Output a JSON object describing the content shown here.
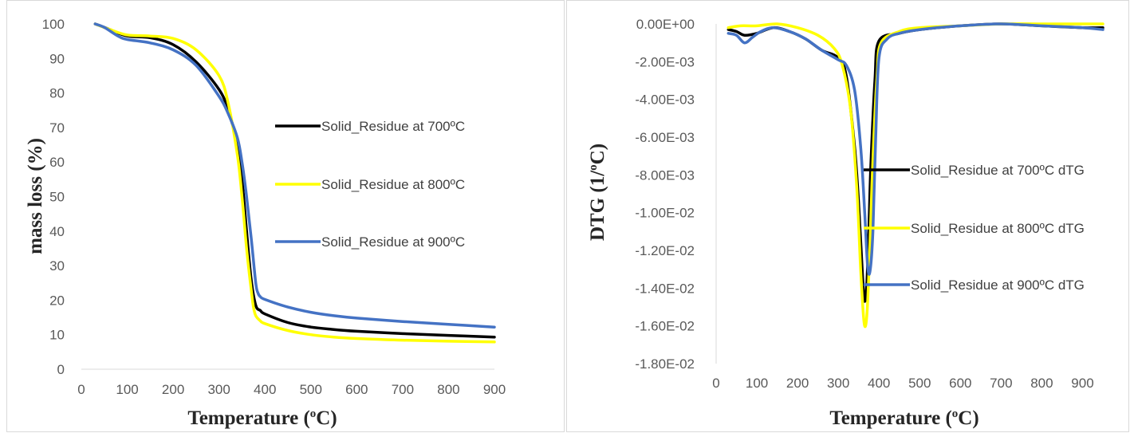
{
  "chart_data": [
    {
      "type": "line",
      "title": "",
      "xlabel": "Temperature (",
      "xlabel_sup": "o",
      "xlabel_end": "C)",
      "ylabel": "mass loss (%)",
      "xlim": [
        0,
        900
      ],
      "ylim": [
        0,
        100
      ],
      "xticks": [
        "0",
        "100",
        "200",
        "300",
        "400",
        "500",
        "600",
        "700",
        "800",
        "900"
      ],
      "yticks": [
        "0",
        "10",
        "20",
        "30",
        "40",
        "50",
        "60",
        "70",
        "80",
        "90",
        "100"
      ],
      "grid": false,
      "legend_position": "right",
      "series": [
        {
          "name": "Solid_Residue at 700ºC",
          "color": "#000000",
          "x": [
            30,
            60,
            100,
            150,
            200,
            250,
            300,
            320,
            340,
            350,
            360,
            370,
            380,
            390,
            400,
            450,
            500,
            550,
            600,
            700,
            800,
            900
          ],
          "y": [
            100,
            98.5,
            96.5,
            96,
            94,
            89,
            81,
            75,
            65,
            55,
            40,
            26,
            18.5,
            17,
            16,
            13.5,
            12.2,
            11.5,
            11,
            10.3,
            9.8,
            9.3
          ]
        },
        {
          "name": "Solid_Residue at 800ºC",
          "color": "#ffff00",
          "x": [
            30,
            60,
            100,
            150,
            200,
            250,
            300,
            320,
            340,
            350,
            360,
            370,
            375,
            380,
            390,
            400,
            450,
            500,
            550,
            600,
            700,
            800,
            900
          ],
          "y": [
            100,
            98.5,
            96.8,
            96.5,
            95.8,
            92.5,
            85,
            77,
            62,
            50,
            35,
            23,
            18,
            15.5,
            14,
            13.2,
            11.2,
            10,
            9.3,
            8.9,
            8.4,
            8.1,
            7.9
          ]
        },
        {
          "name": "Solid_Residue at 900ºC",
          "color": "#4472c4",
          "x": [
            30,
            50,
            80,
            100,
            150,
            200,
            250,
            300,
            320,
            340,
            350,
            360,
            370,
            380,
            385,
            390,
            400,
            450,
            500,
            550,
            600,
            700,
            800,
            900
          ],
          "y": [
            100,
            99,
            96.5,
            95.5,
            94.5,
            92.5,
            88,
            79,
            74,
            67,
            60,
            50,
            38,
            25,
            22,
            21,
            20.2,
            18,
            16.5,
            15.5,
            14.8,
            13.8,
            13,
            12.2
          ]
        }
      ]
    },
    {
      "type": "line",
      "title": "",
      "xlabel": "Temperature (",
      "xlabel_sup": "o",
      "xlabel_end": "C)",
      "ylabel": "DTG (1/",
      "ylabel_sup": "o",
      "ylabel_end": "C)",
      "xlim": [
        0,
        950
      ],
      "ylim": [
        -0.018,
        0
      ],
      "xticks": [
        "0",
        "100",
        "200",
        "300",
        "400",
        "500",
        "600",
        "700",
        "800",
        "900"
      ],
      "yticks": [
        "0.00E+00",
        "-2.00E-03",
        "-4.00E-03",
        "-6.00E-03",
        "-8.00E-03",
        "-1.00E-02",
        "-1.20E-02",
        "-1.40E-02",
        "-1.60E-02",
        "-1.80E-02"
      ],
      "grid": false,
      "legend_position": "inside-right",
      "series": [
        {
          "name": "Solid_Residue at 700ºC dTG",
          "color": "#000000",
          "x": [
            30,
            50,
            70,
            100,
            140,
            180,
            220,
            260,
            300,
            320,
            340,
            350,
            360,
            365,
            370,
            375,
            380,
            390,
            400,
            450,
            500,
            600,
            700,
            800,
            900,
            950
          ],
          "y": [
            -0.0003,
            -0.0004,
            -0.0006,
            -0.0005,
            -0.0002,
            -0.0004,
            -0.0008,
            -0.0014,
            -0.0018,
            -0.0028,
            -0.0065,
            -0.0095,
            -0.0135,
            -0.0147,
            -0.0138,
            -0.011,
            -0.0075,
            -0.003,
            -0.0009,
            -0.0005,
            -0.0003,
            -0.0001,
            0,
            -0.0001,
            -0.0002,
            -0.0002
          ]
        },
        {
          "name": "Solid_Residue at 800ºC dTG",
          "color": "#ffff00",
          "x": [
            30,
            60,
            100,
            150,
            200,
            250,
            290,
            310,
            330,
            345,
            355,
            362,
            367,
            372,
            378,
            385,
            395,
            405,
            450,
            500,
            600,
            700,
            800,
            900,
            950
          ],
          "y": [
            -0.0002,
            -0.0001,
            -0.0001,
            0,
            -0.0002,
            -0.0006,
            -0.0013,
            -0.0022,
            -0.0045,
            -0.0085,
            -0.013,
            -0.0155,
            -0.016,
            -0.0148,
            -0.0115,
            -0.0072,
            -0.0028,
            -0.001,
            -0.0004,
            -0.0002,
            -0.0001,
            0,
            0,
            0,
            0
          ]
        },
        {
          "name": "Solid_Residue at 900ºC dTG",
          "color": "#4472c4",
          "x": [
            30,
            50,
            70,
            90,
            110,
            140,
            180,
            220,
            260,
            300,
            320,
            340,
            355,
            365,
            372,
            378,
            385,
            392,
            400,
            420,
            450,
            500,
            600,
            700,
            800,
            900,
            950
          ],
          "y": [
            -0.0005,
            -0.0006,
            -0.001,
            -0.0007,
            -0.0004,
            -0.0002,
            -0.0004,
            -0.0008,
            -0.0014,
            -0.0019,
            -0.0022,
            -0.0035,
            -0.0065,
            -0.01,
            -0.0128,
            -0.0131,
            -0.011,
            -0.006,
            -0.0018,
            -0.0008,
            -0.0005,
            -0.0003,
            -0.0001,
            0,
            -0.0001,
            -0.0002,
            -0.0003
          ]
        }
      ]
    }
  ]
}
